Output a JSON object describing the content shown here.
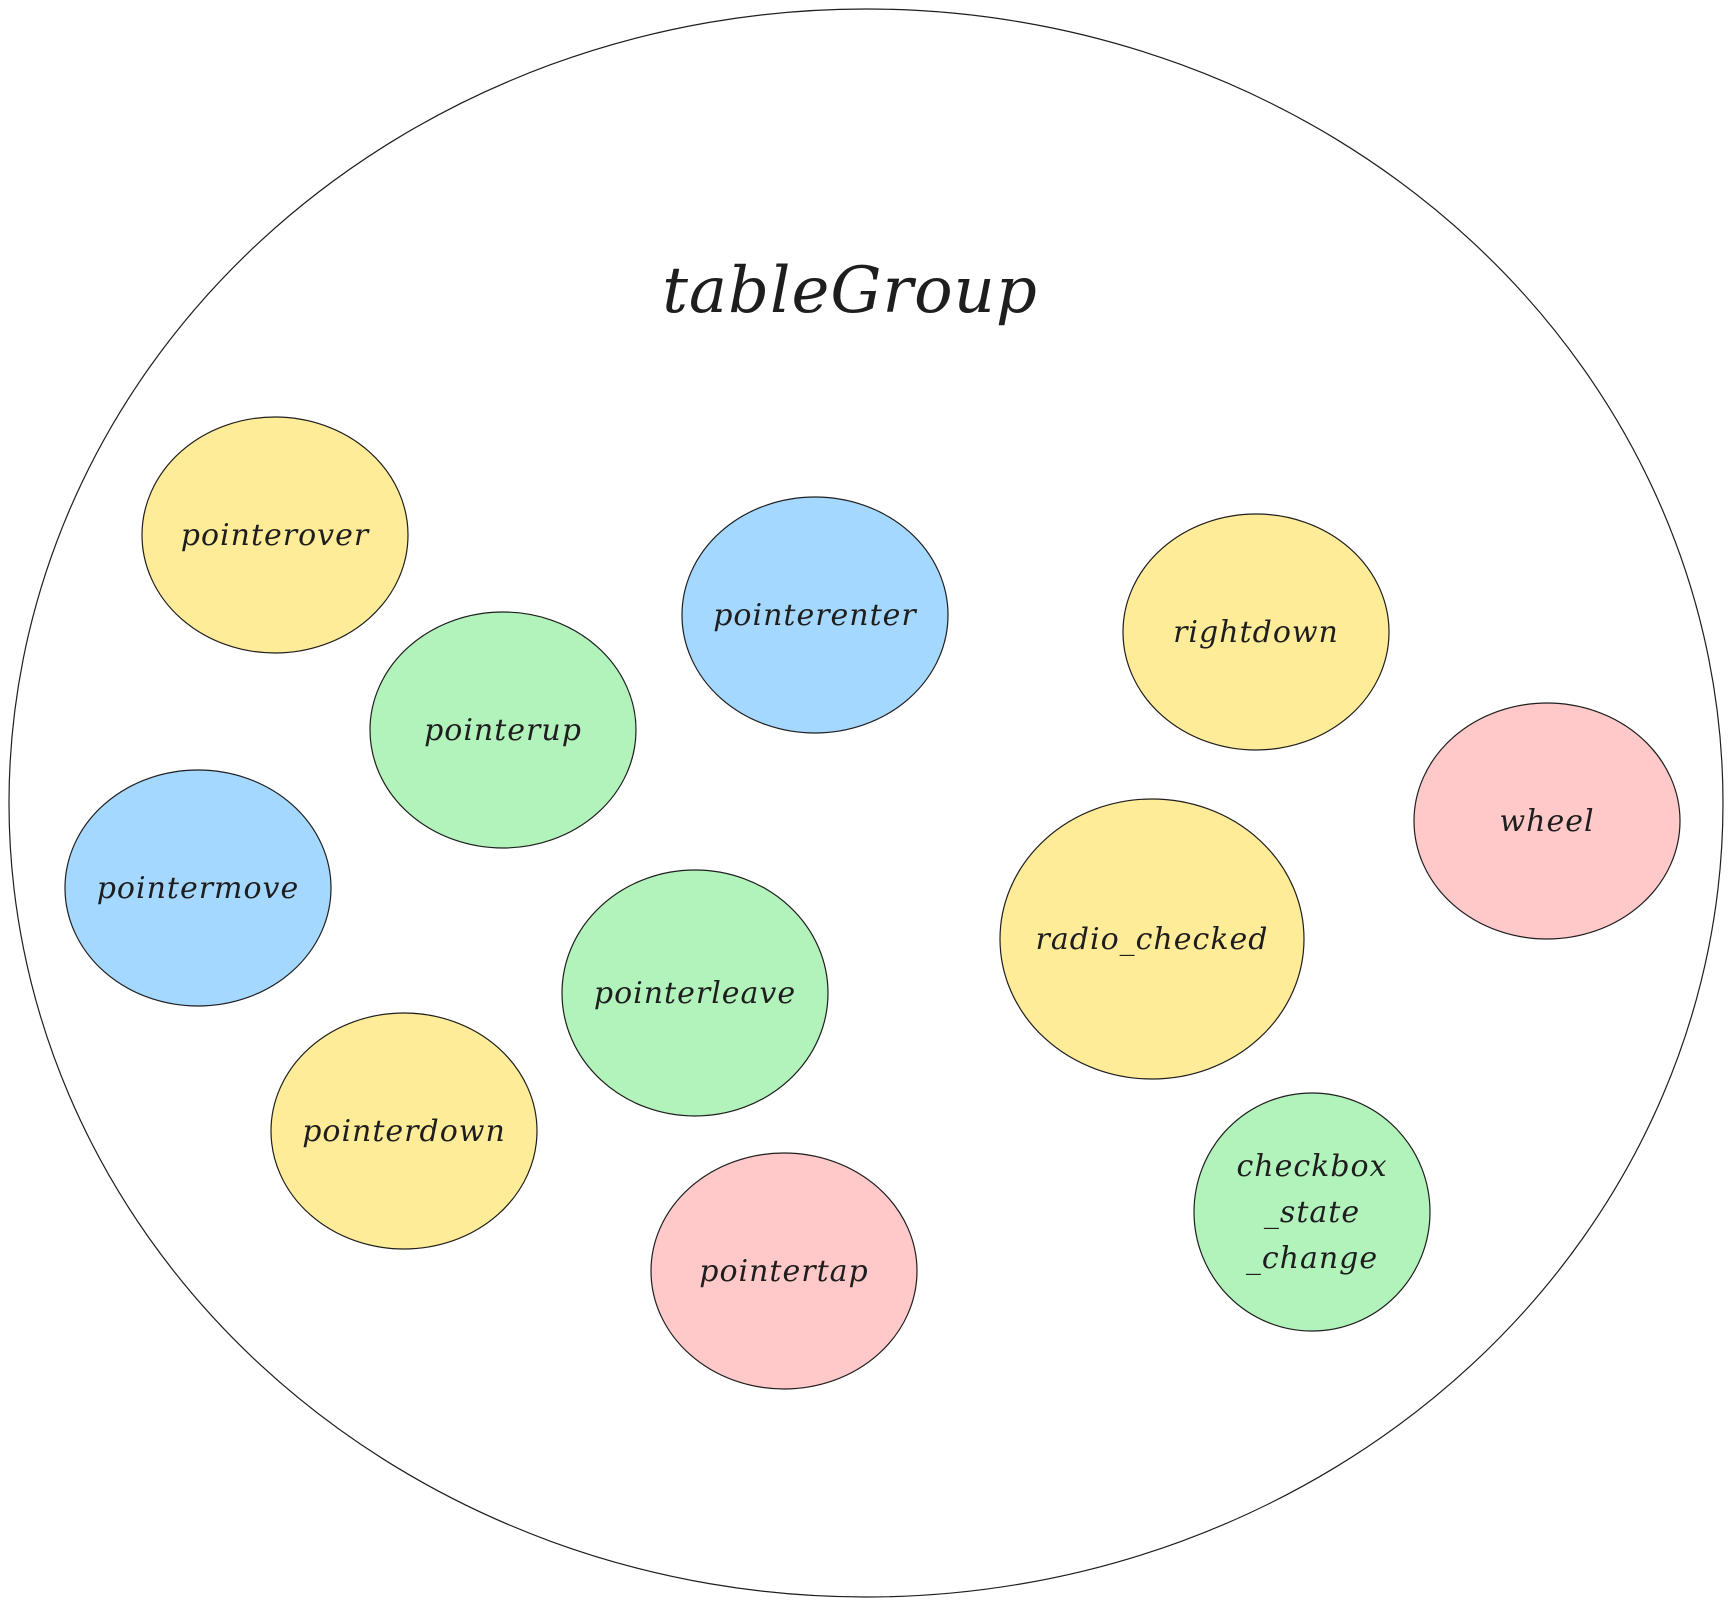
{
  "group": {
    "title": "tableGroup"
  },
  "colors": {
    "yellow": "#ffec99",
    "blue": "#a5d8ff",
    "green": "#b2f2bb",
    "pink": "#ffc9c9",
    "outline": "#1e1e1e",
    "background": "#ffffff"
  },
  "nodes": [
    {
      "id": "pointerover",
      "lines": [
        "pointerover"
      ],
      "color": "yellow"
    },
    {
      "id": "pointerenter",
      "lines": [
        "pointerenter"
      ],
      "color": "blue"
    },
    {
      "id": "rightdown",
      "lines": [
        "rightdown"
      ],
      "color": "yellow"
    },
    {
      "id": "pointerup",
      "lines": [
        "pointerup"
      ],
      "color": "green"
    },
    {
      "id": "wheel",
      "lines": [
        "wheel"
      ],
      "color": "pink"
    },
    {
      "id": "pointermove",
      "lines": [
        "pointermove"
      ],
      "color": "blue"
    },
    {
      "id": "radio-checked",
      "lines": [
        "radio_checked"
      ],
      "color": "yellow"
    },
    {
      "id": "pointerleave",
      "lines": [
        "pointerleave"
      ],
      "color": "green"
    },
    {
      "id": "pointerdown",
      "lines": [
        "pointerdown"
      ],
      "color": "yellow"
    },
    {
      "id": "checkbox-state-change",
      "lines": [
        "checkbox",
        "_state",
        "_change"
      ],
      "color": "green"
    },
    {
      "id": "pointertap",
      "lines": [
        "pointertap"
      ],
      "color": "pink"
    }
  ]
}
